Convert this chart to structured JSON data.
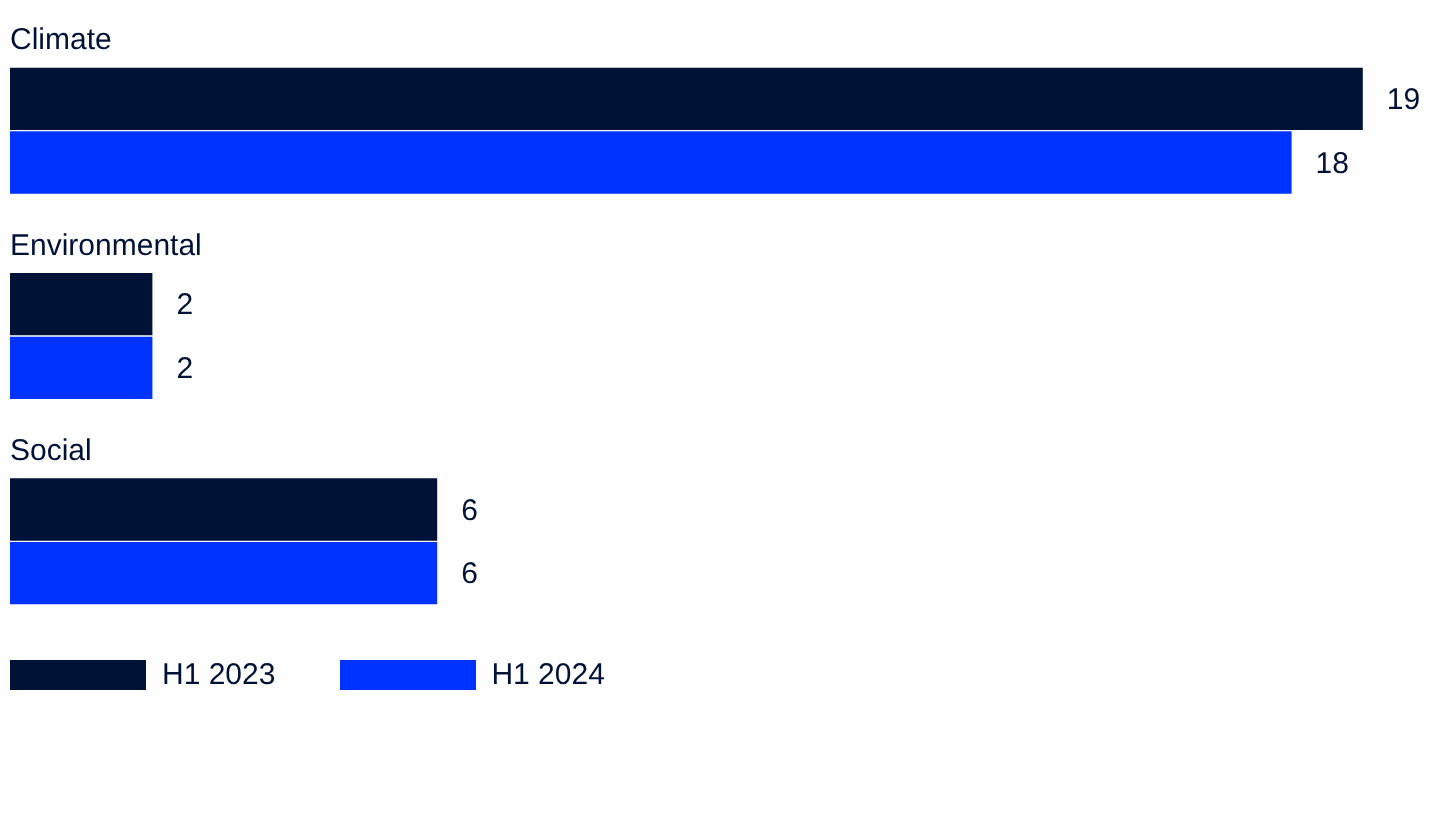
{
  "chart_data": {
    "type": "bar",
    "orientation": "horizontal",
    "categories": [
      "Climate",
      "Environmental",
      "Social"
    ],
    "series": [
      {
        "name": "H1 2023",
        "color": "#001236",
        "values": [
          19,
          2,
          6
        ]
      },
      {
        "name": "H1 2024",
        "color": "#0033ff",
        "values": [
          18,
          2,
          6
        ]
      }
    ],
    "data_labels": true,
    "legend": "bottom left"
  }
}
